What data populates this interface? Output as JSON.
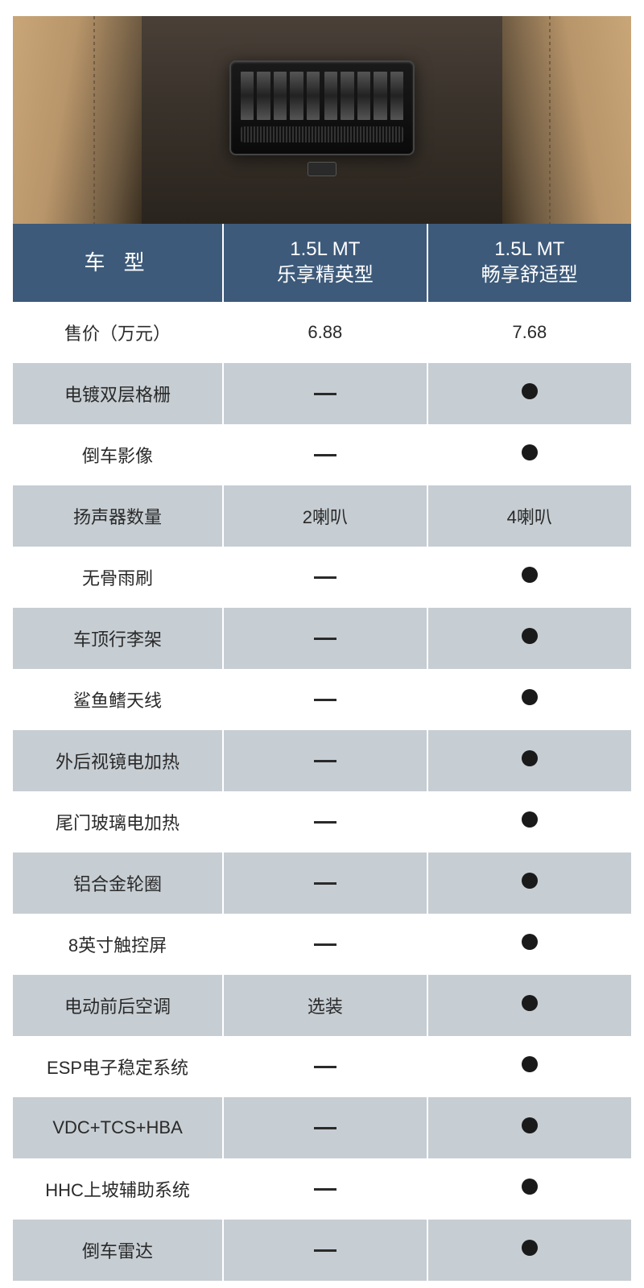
{
  "image": {
    "description": "car-rear-air-vent"
  },
  "table": {
    "header": {
      "feature_label": "车 型",
      "variant1": {
        "line1": "1.5L MT",
        "line2": "乐享精英型"
      },
      "variant2": {
        "line1": "1.5L MT",
        "line2": "畅享舒适型"
      }
    },
    "header_bg": "#3d5a7a",
    "row_gray_bg": "#c6cdd3",
    "row_white_bg": "#ffffff",
    "text_color": "#2a2a2a",
    "rows": [
      {
        "feature": "售价（万元）",
        "v1": "6.88",
        "v2": "7.68",
        "stripe": "white"
      },
      {
        "feature": "电镀双层格栅",
        "v1": "dash",
        "v2": "dot",
        "stripe": "gray"
      },
      {
        "feature": "倒车影像",
        "v1": "dash",
        "v2": "dot",
        "stripe": "white"
      },
      {
        "feature": "扬声器数量",
        "v1": "2喇叭",
        "v2": "4喇叭",
        "stripe": "gray"
      },
      {
        "feature": "无骨雨刷",
        "v1": "dash",
        "v2": "dot",
        "stripe": "white"
      },
      {
        "feature": "车顶行李架",
        "v1": "dash",
        "v2": "dot",
        "stripe": "gray"
      },
      {
        "feature": "鲨鱼鳍天线",
        "v1": "dash",
        "v2": "dot",
        "stripe": "white"
      },
      {
        "feature": "外后视镜电加热",
        "v1": "dash",
        "v2": "dot",
        "stripe": "gray"
      },
      {
        "feature": "尾门玻璃电加热",
        "v1": "dash",
        "v2": "dot",
        "stripe": "white"
      },
      {
        "feature": "铝合金轮圈",
        "v1": "dash",
        "v2": "dot",
        "stripe": "gray"
      },
      {
        "feature": "8英寸触控屏",
        "v1": "dash",
        "v2": "dot",
        "stripe": "white"
      },
      {
        "feature": "电动前后空调",
        "v1": "选装",
        "v2": "dot",
        "stripe": "gray"
      },
      {
        "feature": "ESP电子稳定系统",
        "v1": "dash",
        "v2": "dot",
        "stripe": "white"
      },
      {
        "feature": "VDC+TCS+HBA",
        "v1": "dash",
        "v2": "dot",
        "stripe": "gray"
      },
      {
        "feature": "HHC上坡辅助系统",
        "v1": "dash",
        "v2": "dot",
        "stripe": "white"
      },
      {
        "feature": "倒车雷达",
        "v1": "dash",
        "v2": "dot",
        "stripe": "gray"
      }
    ]
  }
}
